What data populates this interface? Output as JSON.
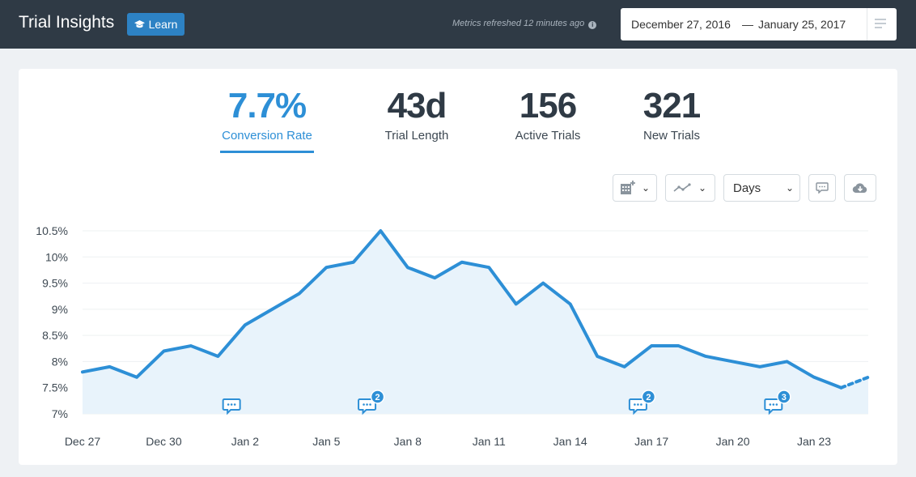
{
  "header": {
    "title": "Trial Insights",
    "learn_label": "Learn",
    "refresh_text": "Metrics refreshed",
    "refresh_ago": "12 minutes ago",
    "date_start": "December 27, 2016",
    "date_sep": "—",
    "date_end": "January 25, 2017"
  },
  "metrics": [
    {
      "value": "7.7%",
      "label": "Conversion Rate"
    },
    {
      "value": "43d",
      "label": "Trial Length"
    },
    {
      "value": "156",
      "label": "Active Trials"
    },
    {
      "value": "321",
      "label": "New Trials"
    }
  ],
  "toolbar": {
    "interval_label": "Days"
  },
  "colors": {
    "accent": "#2d8fd6",
    "header_bg": "#2f3a45",
    "area_fill": "#e8f3fb"
  },
  "chart_data": {
    "type": "area",
    "ylabel": "",
    "xlabel": "",
    "ylim": [
      7,
      10.5
    ],
    "yticks": [
      "10.5%",
      "10%",
      "9.5%",
      "9%",
      "8.5%",
      "8%",
      "7.5%",
      "7%"
    ],
    "xtick_labels": [
      "Dec 27",
      "Dec 30",
      "Jan 2",
      "Jan 5",
      "Jan 8",
      "Jan 11",
      "Jan 14",
      "Jan 17",
      "Jan 20",
      "Jan 23"
    ],
    "x": [
      "Dec 27",
      "Dec 28",
      "Dec 29",
      "Dec 30",
      "Dec 31",
      "Jan 1",
      "Jan 2",
      "Jan 3",
      "Jan 4",
      "Jan 5",
      "Jan 6",
      "Jan 7",
      "Jan 8",
      "Jan 9",
      "Jan 10",
      "Jan 11",
      "Jan 12",
      "Jan 13",
      "Jan 14",
      "Jan 15",
      "Jan 16",
      "Jan 17",
      "Jan 18",
      "Jan 19",
      "Jan 20",
      "Jan 21",
      "Jan 22",
      "Jan 23",
      "Jan 24",
      "Jan 25"
    ],
    "series": [
      {
        "values": [
          7.8,
          7.9,
          7.7,
          8.2,
          8.3,
          8.1,
          8.7,
          9.0,
          9.3,
          9.8,
          9.9,
          10.5,
          9.8,
          9.6,
          9.9,
          9.8,
          9.1,
          9.5,
          9.1,
          8.1,
          7.9,
          8.3,
          8.3,
          8.1,
          8.0,
          7.9,
          8.0,
          7.7,
          7.5,
          7.7
        ],
        "projected_from_index": 28
      }
    ],
    "annotations": [
      {
        "x": "Jan 1",
        "count": ""
      },
      {
        "x": "Jan 6",
        "count": "2"
      },
      {
        "x": "Jan 16",
        "count": "2"
      },
      {
        "x": "Jan 21",
        "count": "3"
      }
    ],
    "grid": true
  }
}
